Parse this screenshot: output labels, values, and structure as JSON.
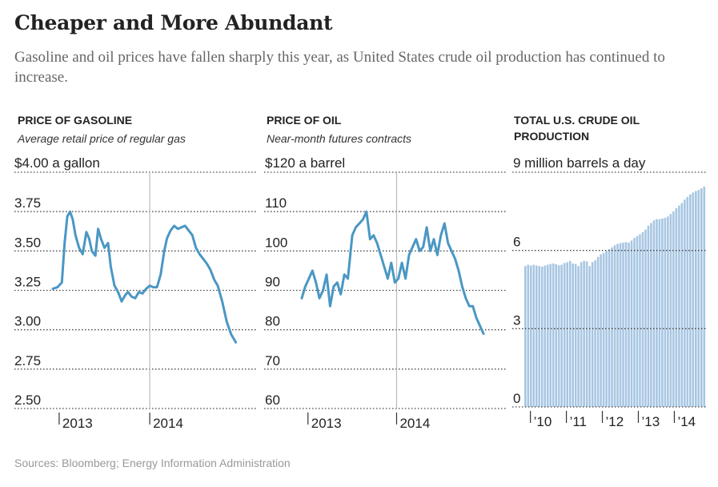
{
  "headline": "Cheaper and More Abundant",
  "subhead": "Gasoline and oil prices have fallen sharply this year, as United States crude oil production has continued to increase.",
  "source": "Sources: Bloomberg; Energy Information Administration",
  "colors": {
    "line": "#4a97c4",
    "bar": "#a7c6e2",
    "grid": "#444444",
    "divider": "#bbbbbb"
  },
  "chart_data": [
    {
      "type": "line",
      "title": "PRICE OF GASOLINE",
      "subtitle": "Average retail price of regular gas",
      "unit_label": "$4.00 a gallon",
      "ylim": [
        2.5,
        4.0
      ],
      "yticks": [
        2.5,
        2.75,
        3.0,
        3.25,
        3.5,
        3.75,
        4.0
      ],
      "ytick_labels": [
        "2.50",
        "2.75",
        "3.00",
        "3.25",
        "3.50",
        "3.75",
        ""
      ],
      "xlim": [
        2012.93,
        2014.98
      ],
      "xtick_labels": [
        "2013",
        "2014"
      ],
      "xtick_values": [
        2013.0,
        2014.0
      ],
      "series": [
        {
          "name": "Gasoline",
          "x": [
            2012.93,
            2012.98,
            2013.03,
            2013.06,
            2013.09,
            2013.12,
            2013.15,
            2013.18,
            2013.22,
            2013.26,
            2013.3,
            2013.33,
            2013.36,
            2013.4,
            2013.43,
            2013.46,
            2013.5,
            2013.54,
            2013.57,
            2013.61,
            2013.65,
            2013.69,
            2013.73,
            2013.76,
            2013.8,
            2013.84,
            2013.88,
            2013.92,
            2013.96,
            2014.0,
            2014.04,
            2014.08,
            2014.12,
            2014.16,
            2014.19,
            2014.23,
            2014.27,
            2014.31,
            2014.35,
            2014.39,
            2014.43,
            2014.47,
            2014.51,
            2014.55,
            2014.59,
            2014.63,
            2014.67,
            2014.71,
            2014.75,
            2014.8,
            2014.85,
            2014.9,
            2014.95
          ],
          "values": [
            3.26,
            3.27,
            3.3,
            3.55,
            3.72,
            3.75,
            3.7,
            3.6,
            3.52,
            3.48,
            3.62,
            3.58,
            3.5,
            3.47,
            3.64,
            3.58,
            3.52,
            3.55,
            3.4,
            3.28,
            3.24,
            3.18,
            3.22,
            3.24,
            3.21,
            3.2,
            3.24,
            3.23,
            3.26,
            3.28,
            3.27,
            3.27,
            3.35,
            3.5,
            3.58,
            3.63,
            3.66,
            3.64,
            3.65,
            3.66,
            3.63,
            3.6,
            3.52,
            3.48,
            3.45,
            3.42,
            3.38,
            3.32,
            3.28,
            3.18,
            3.05,
            2.97,
            2.92
          ]
        }
      ]
    },
    {
      "type": "line",
      "title": "PRICE OF OIL",
      "subtitle": "Near-month futures contracts",
      "unit_label": "$120 a barrel",
      "ylim": [
        60,
        120
      ],
      "yticks": [
        60,
        70,
        80,
        90,
        100,
        110,
        120
      ],
      "ytick_labels": [
        "60",
        "70",
        "80",
        "90",
        "100",
        "110",
        ""
      ],
      "xlim": [
        2012.93,
        2014.98
      ],
      "xtick_labels": [
        "2013",
        "2014"
      ],
      "xtick_values": [
        2013.0,
        2014.0
      ],
      "series": [
        {
          "name": "Oil",
          "x": [
            2012.93,
            2012.97,
            2013.01,
            2013.05,
            2013.09,
            2013.13,
            2013.17,
            2013.21,
            2013.25,
            2013.29,
            2013.33,
            2013.37,
            2013.41,
            2013.45,
            2013.5,
            2013.54,
            2013.58,
            2013.62,
            2013.66,
            2013.7,
            2013.74,
            2013.78,
            2013.82,
            2013.86,
            2013.9,
            2013.94,
            2013.98,
            2014.02,
            2014.06,
            2014.1,
            2014.14,
            2014.18,
            2014.22,
            2014.26,
            2014.3,
            2014.34,
            2014.38,
            2014.42,
            2014.46,
            2014.5,
            2014.54,
            2014.58,
            2014.62,
            2014.66,
            2014.7,
            2014.74,
            2014.78,
            2014.82,
            2014.86,
            2014.9,
            2014.94,
            2014.98
          ],
          "values": [
            88,
            91,
            93,
            95,
            92,
            88,
            90,
            94,
            86,
            91,
            92,
            89,
            94,
            93,
            104,
            106,
            107,
            108,
            110,
            103,
            104,
            102,
            99,
            96,
            93,
            97,
            92,
            93,
            97,
            93,
            99,
            101,
            103,
            100,
            101,
            106,
            100,
            103,
            99,
            104,
            107,
            102,
            100,
            98,
            95,
            91,
            88,
            86,
            86,
            83,
            81,
            79
          ]
        }
      ]
    },
    {
      "type": "bar",
      "title": "TOTAL U.S. CRUDE OIL PRODUCTION",
      "unit_label": "9 million barrels a day",
      "ylim": [
        0,
        9
      ],
      "yticks": [
        0,
        3,
        6,
        9
      ],
      "ytick_labels": [
        "0",
        "3",
        "6",
        ""
      ],
      "xlim": [
        2009.83,
        2014.88
      ],
      "xtick_labels": [
        "’10",
        "’11",
        "’12",
        "’13",
        "’14"
      ],
      "xtick_values": [
        2010.0,
        2011.0,
        2012.0,
        2013.0,
        2014.0
      ],
      "categories_start": "2009-11",
      "values": [
        5.4,
        5.45,
        5.42,
        5.45,
        5.42,
        5.4,
        5.38,
        5.42,
        5.45,
        5.48,
        5.5,
        5.47,
        5.43,
        5.45,
        5.52,
        5.55,
        5.6,
        5.5,
        5.48,
        5.4,
        5.55,
        5.6,
        5.58,
        5.4,
        5.55,
        5.62,
        5.75,
        5.85,
        5.9,
        5.98,
        6.05,
        6.12,
        6.2,
        6.25,
        6.28,
        6.3,
        6.32,
        6.3,
        6.38,
        6.48,
        6.55,
        6.62,
        6.7,
        6.8,
        6.95,
        7.05,
        7.15,
        7.2,
        7.2,
        7.22,
        7.25,
        7.3,
        7.4,
        7.5,
        7.62,
        7.72,
        7.82,
        7.95,
        8.05,
        8.15,
        8.22,
        8.28,
        8.32,
        8.38,
        8.45
      ]
    }
  ]
}
